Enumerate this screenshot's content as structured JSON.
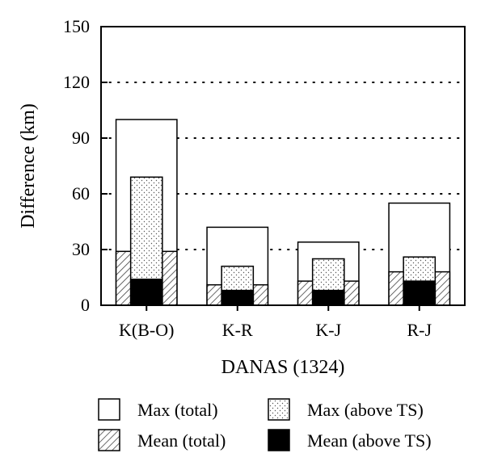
{
  "chart_data": {
    "type": "bar",
    "xlabel": "DANAS (1324)",
    "ylabel": "Difference (km)",
    "ylim": [
      0,
      150
    ],
    "yticks": [
      0,
      30,
      60,
      90,
      120,
      150
    ],
    "grid": "dotted horizontal at 30, 60, 90, 120",
    "categories": [
      "K(B-O)",
      "K-R",
      "K-J",
      "R-J"
    ],
    "series": [
      {
        "name": "Max (total)",
        "key": "max_total",
        "pattern": "white",
        "values": [
          100,
          42,
          34,
          55
        ]
      },
      {
        "name": "Max (above TS)",
        "key": "max_ts",
        "pattern": "dots",
        "values": [
          69,
          21,
          25,
          26
        ]
      },
      {
        "name": "Mean (total)",
        "key": "mean_total",
        "pattern": "hatch",
        "values": [
          29,
          11,
          13,
          18
        ]
      },
      {
        "name": "Mean (above TS)",
        "key": "mean_ts",
        "pattern": "black",
        "values": [
          14,
          8,
          8,
          13
        ]
      }
    ],
    "legend_position": "bottom"
  }
}
